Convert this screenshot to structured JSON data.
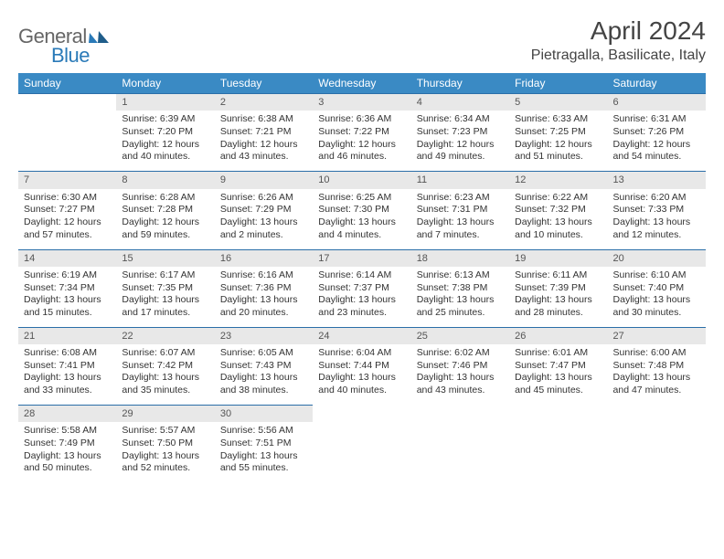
{
  "logo": {
    "text1": "General",
    "text2": "Blue"
  },
  "title": "April 2024",
  "location": "Pietragalla, Basilicate, Italy",
  "weekdays": [
    "Sunday",
    "Monday",
    "Tuesday",
    "Wednesday",
    "Thursday",
    "Friday",
    "Saturday"
  ],
  "colors": {
    "header_bg": "#3a8ac4",
    "cell_border": "#2a6ea8",
    "daynum_bg": "#e8e8e8",
    "text": "#333333",
    "logo_blue": "#2a7ab8"
  },
  "grid": {
    "rows": 5,
    "cols": 7
  },
  "days": [
    {
      "n": "",
      "l1": "",
      "l2": "",
      "l3": "",
      "l4": ""
    },
    {
      "n": "1",
      "l1": "Sunrise: 6:39 AM",
      "l2": "Sunset: 7:20 PM",
      "l3": "Daylight: 12 hours",
      "l4": "and 40 minutes."
    },
    {
      "n": "2",
      "l1": "Sunrise: 6:38 AM",
      "l2": "Sunset: 7:21 PM",
      "l3": "Daylight: 12 hours",
      "l4": "and 43 minutes."
    },
    {
      "n": "3",
      "l1": "Sunrise: 6:36 AM",
      "l2": "Sunset: 7:22 PM",
      "l3": "Daylight: 12 hours",
      "l4": "and 46 minutes."
    },
    {
      "n": "4",
      "l1": "Sunrise: 6:34 AM",
      "l2": "Sunset: 7:23 PM",
      "l3": "Daylight: 12 hours",
      "l4": "and 49 minutes."
    },
    {
      "n": "5",
      "l1": "Sunrise: 6:33 AM",
      "l2": "Sunset: 7:25 PM",
      "l3": "Daylight: 12 hours",
      "l4": "and 51 minutes."
    },
    {
      "n": "6",
      "l1": "Sunrise: 6:31 AM",
      "l2": "Sunset: 7:26 PM",
      "l3": "Daylight: 12 hours",
      "l4": "and 54 minutes."
    },
    {
      "n": "7",
      "l1": "Sunrise: 6:30 AM",
      "l2": "Sunset: 7:27 PM",
      "l3": "Daylight: 12 hours",
      "l4": "and 57 minutes."
    },
    {
      "n": "8",
      "l1": "Sunrise: 6:28 AM",
      "l2": "Sunset: 7:28 PM",
      "l3": "Daylight: 12 hours",
      "l4": "and 59 minutes."
    },
    {
      "n": "9",
      "l1": "Sunrise: 6:26 AM",
      "l2": "Sunset: 7:29 PM",
      "l3": "Daylight: 13 hours",
      "l4": "and 2 minutes."
    },
    {
      "n": "10",
      "l1": "Sunrise: 6:25 AM",
      "l2": "Sunset: 7:30 PM",
      "l3": "Daylight: 13 hours",
      "l4": "and 4 minutes."
    },
    {
      "n": "11",
      "l1": "Sunrise: 6:23 AM",
      "l2": "Sunset: 7:31 PM",
      "l3": "Daylight: 13 hours",
      "l4": "and 7 minutes."
    },
    {
      "n": "12",
      "l1": "Sunrise: 6:22 AM",
      "l2": "Sunset: 7:32 PM",
      "l3": "Daylight: 13 hours",
      "l4": "and 10 minutes."
    },
    {
      "n": "13",
      "l1": "Sunrise: 6:20 AM",
      "l2": "Sunset: 7:33 PM",
      "l3": "Daylight: 13 hours",
      "l4": "and 12 minutes."
    },
    {
      "n": "14",
      "l1": "Sunrise: 6:19 AM",
      "l2": "Sunset: 7:34 PM",
      "l3": "Daylight: 13 hours",
      "l4": "and 15 minutes."
    },
    {
      "n": "15",
      "l1": "Sunrise: 6:17 AM",
      "l2": "Sunset: 7:35 PM",
      "l3": "Daylight: 13 hours",
      "l4": "and 17 minutes."
    },
    {
      "n": "16",
      "l1": "Sunrise: 6:16 AM",
      "l2": "Sunset: 7:36 PM",
      "l3": "Daylight: 13 hours",
      "l4": "and 20 minutes."
    },
    {
      "n": "17",
      "l1": "Sunrise: 6:14 AM",
      "l2": "Sunset: 7:37 PM",
      "l3": "Daylight: 13 hours",
      "l4": "and 23 minutes."
    },
    {
      "n": "18",
      "l1": "Sunrise: 6:13 AM",
      "l2": "Sunset: 7:38 PM",
      "l3": "Daylight: 13 hours",
      "l4": "and 25 minutes."
    },
    {
      "n": "19",
      "l1": "Sunrise: 6:11 AM",
      "l2": "Sunset: 7:39 PM",
      "l3": "Daylight: 13 hours",
      "l4": "and 28 minutes."
    },
    {
      "n": "20",
      "l1": "Sunrise: 6:10 AM",
      "l2": "Sunset: 7:40 PM",
      "l3": "Daylight: 13 hours",
      "l4": "and 30 minutes."
    },
    {
      "n": "21",
      "l1": "Sunrise: 6:08 AM",
      "l2": "Sunset: 7:41 PM",
      "l3": "Daylight: 13 hours",
      "l4": "and 33 minutes."
    },
    {
      "n": "22",
      "l1": "Sunrise: 6:07 AM",
      "l2": "Sunset: 7:42 PM",
      "l3": "Daylight: 13 hours",
      "l4": "and 35 minutes."
    },
    {
      "n": "23",
      "l1": "Sunrise: 6:05 AM",
      "l2": "Sunset: 7:43 PM",
      "l3": "Daylight: 13 hours",
      "l4": "and 38 minutes."
    },
    {
      "n": "24",
      "l1": "Sunrise: 6:04 AM",
      "l2": "Sunset: 7:44 PM",
      "l3": "Daylight: 13 hours",
      "l4": "and 40 minutes."
    },
    {
      "n": "25",
      "l1": "Sunrise: 6:02 AM",
      "l2": "Sunset: 7:46 PM",
      "l3": "Daylight: 13 hours",
      "l4": "and 43 minutes."
    },
    {
      "n": "26",
      "l1": "Sunrise: 6:01 AM",
      "l2": "Sunset: 7:47 PM",
      "l3": "Daylight: 13 hours",
      "l4": "and 45 minutes."
    },
    {
      "n": "27",
      "l1": "Sunrise: 6:00 AM",
      "l2": "Sunset: 7:48 PM",
      "l3": "Daylight: 13 hours",
      "l4": "and 47 minutes."
    },
    {
      "n": "28",
      "l1": "Sunrise: 5:58 AM",
      "l2": "Sunset: 7:49 PM",
      "l3": "Daylight: 13 hours",
      "l4": "and 50 minutes."
    },
    {
      "n": "29",
      "l1": "Sunrise: 5:57 AM",
      "l2": "Sunset: 7:50 PM",
      "l3": "Daylight: 13 hours",
      "l4": "and 52 minutes."
    },
    {
      "n": "30",
      "l1": "Sunrise: 5:56 AM",
      "l2": "Sunset: 7:51 PM",
      "l3": "Daylight: 13 hours",
      "l4": "and 55 minutes."
    },
    {
      "n": "",
      "l1": "",
      "l2": "",
      "l3": "",
      "l4": ""
    },
    {
      "n": "",
      "l1": "",
      "l2": "",
      "l3": "",
      "l4": ""
    },
    {
      "n": "",
      "l1": "",
      "l2": "",
      "l3": "",
      "l4": ""
    },
    {
      "n": "",
      "l1": "",
      "l2": "",
      "l3": "",
      "l4": ""
    }
  ]
}
